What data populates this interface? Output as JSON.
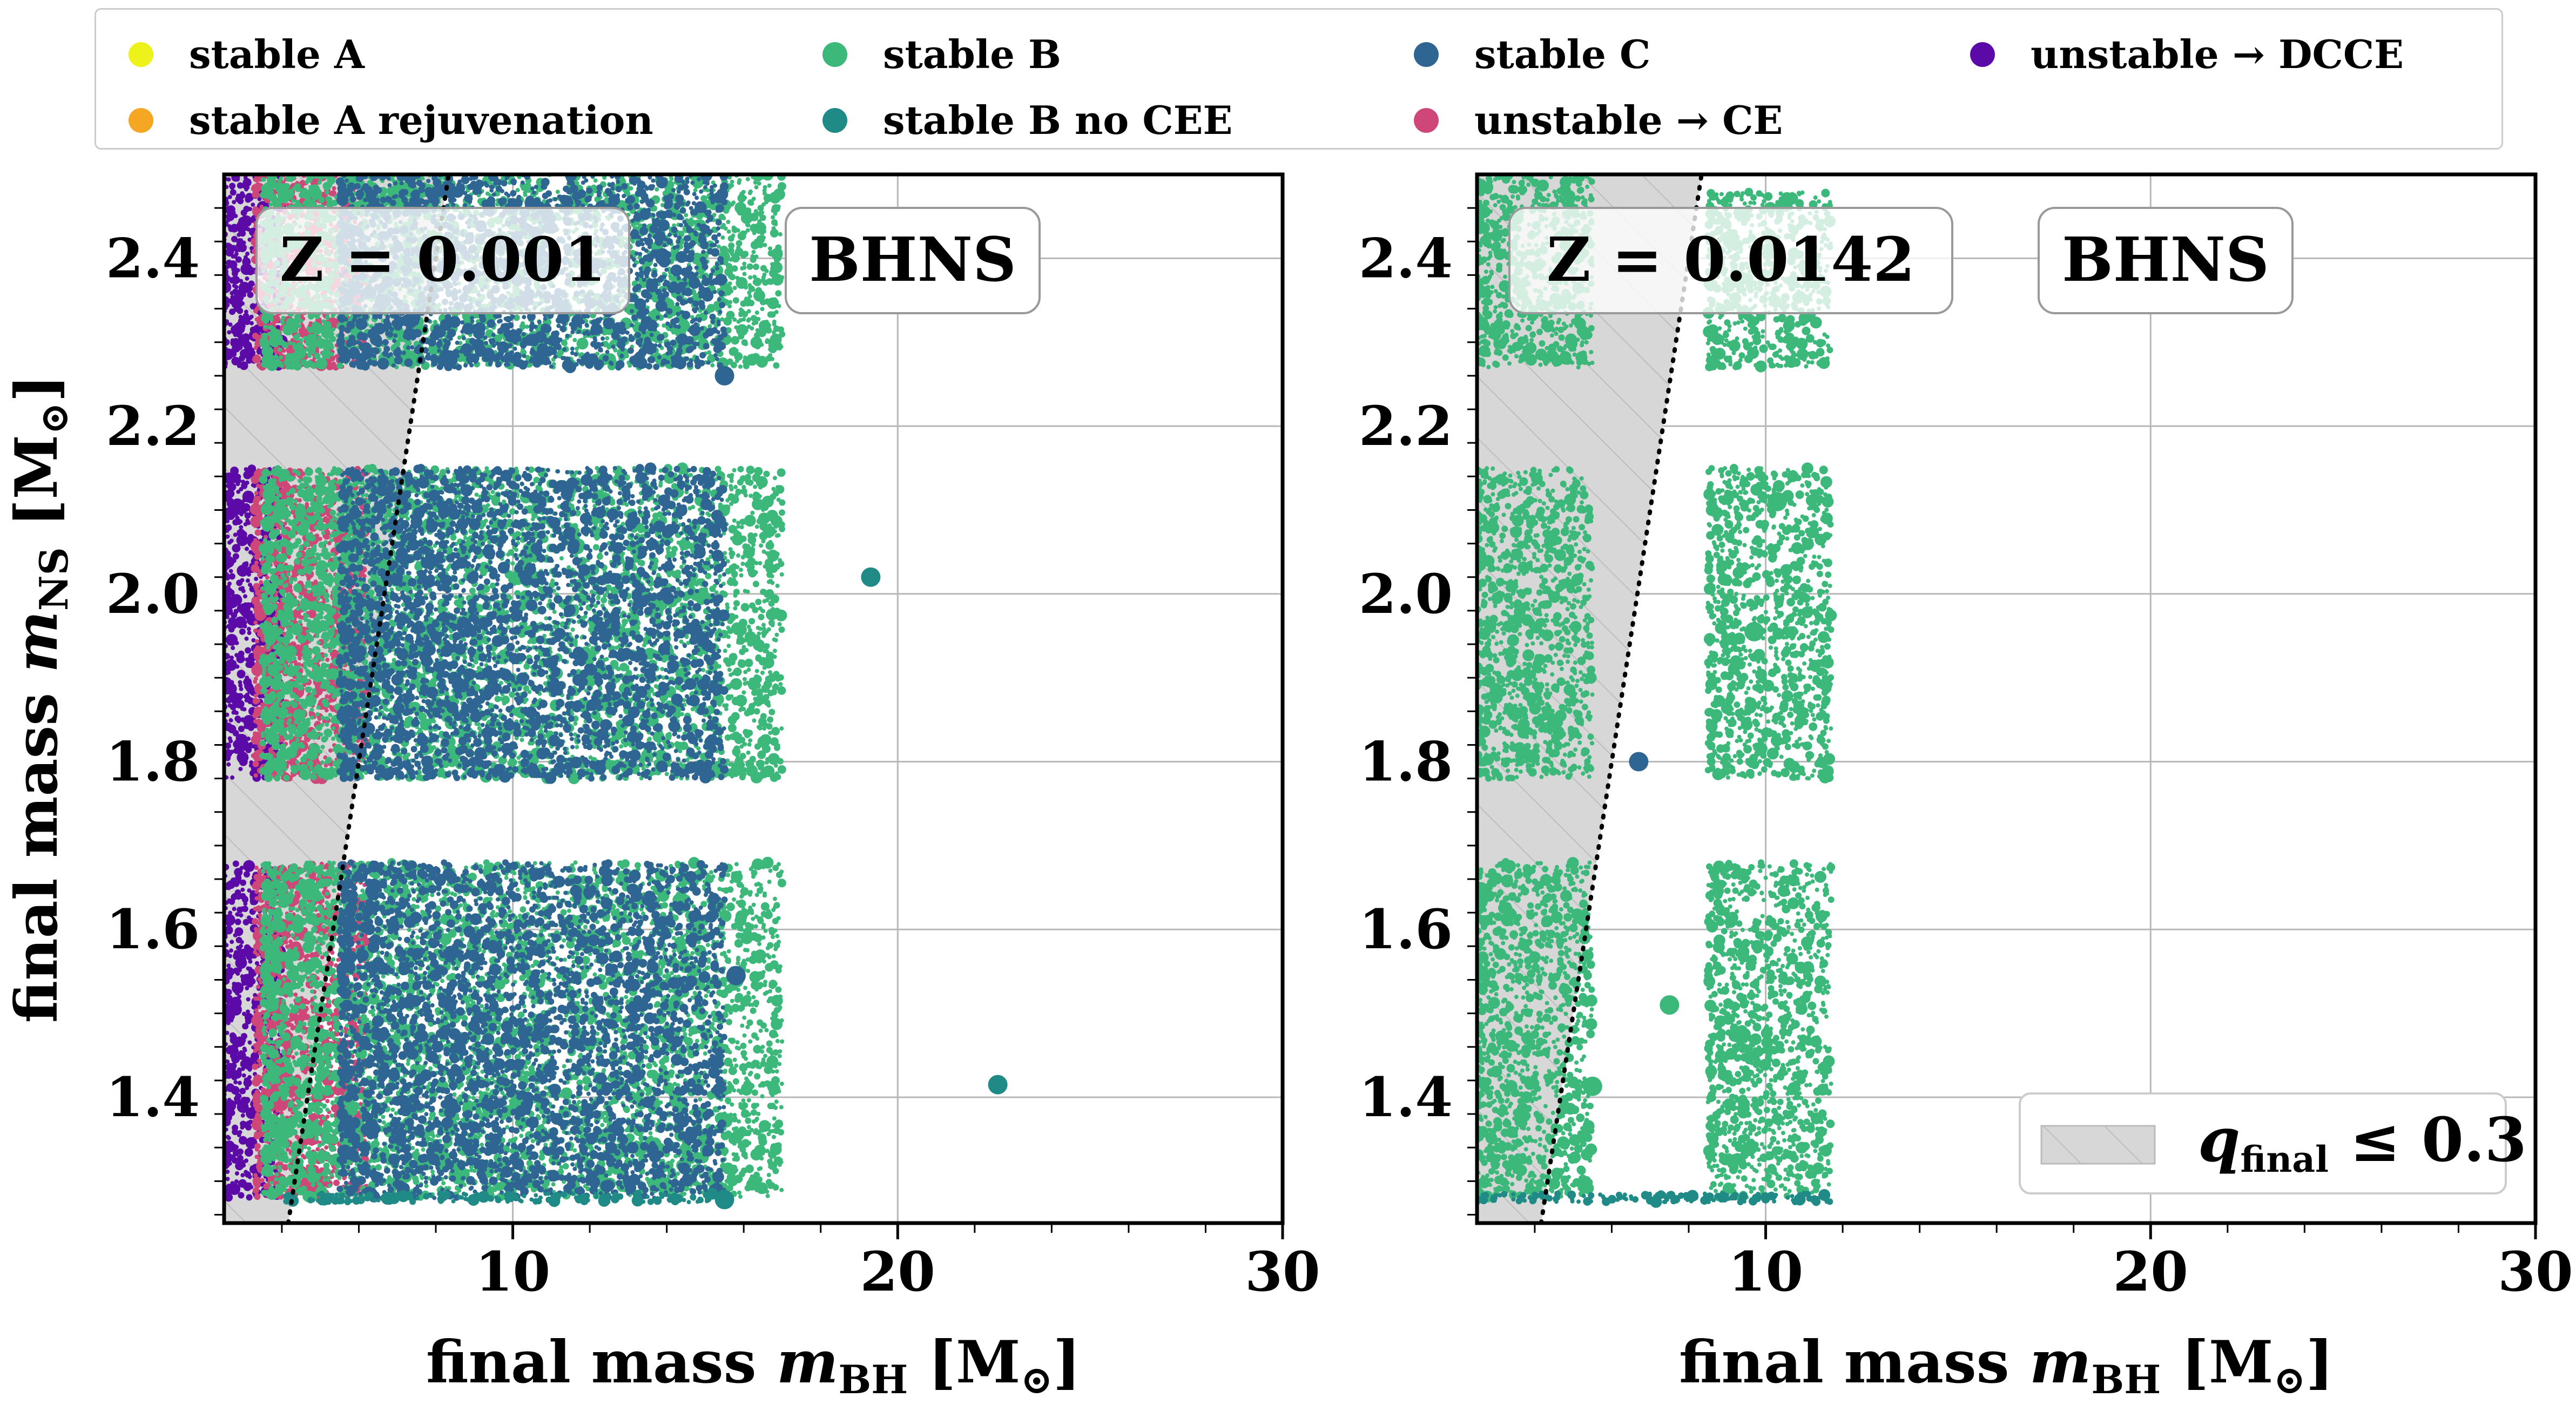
{
  "legend": {
    "items": [
      {
        "label": "stable A",
        "color": "#eef21b"
      },
      {
        "label": "stable A rejuvenation",
        "color": "#f5a623"
      },
      {
        "label": "stable B",
        "color": "#3bb87a"
      },
      {
        "label": "stable B no CEE",
        "color": "#1f8a86"
      },
      {
        "label": "stable C",
        "color": "#2f6592"
      },
      {
        "label": "unstable → CE",
        "color": "#cf4778"
      },
      {
        "label": "unstable → DCCE",
        "color": "#5b0aa8"
      }
    ]
  },
  "panels": [
    {
      "z_label": "Z = 0.001",
      "tag": "BHNS"
    },
    {
      "z_label": "Z = 0.0142",
      "tag": "BHNS"
    }
  ],
  "shade_legend": {
    "label": "q_final ≤ 0.3"
  },
  "chart_data": [
    {
      "type": "scatter",
      "panel": "Z = 0.001",
      "xlabel": "final mass m_BH [M⊙]",
      "ylabel": "final mass m_NS [M⊙]",
      "xlim": [
        2.5,
        30
      ],
      "ylim": [
        1.25,
        2.5
      ],
      "xticks": [
        10,
        20,
        30
      ],
      "yticks": [
        1.4,
        1.6,
        1.8,
        2.0,
        2.2,
        2.4
      ],
      "grid": true,
      "shaded_region": "q_final ≤ 0.3 (m_BH ≤ m_NS / 0.3)",
      "series_regions": [
        {
          "series": "unstable → DCCE",
          "x": [
            2.5,
            4.0
          ],
          "y_bands": [
            [
              1.28,
              1.68
            ],
            [
              1.78,
              2.15
            ],
            [
              2.27,
              2.5
            ]
          ]
        },
        {
          "series": "unstable → CE",
          "x": [
            3.3,
            6.2
          ],
          "y_bands": [
            [
              1.28,
              1.68
            ],
            [
              1.78,
              2.15
            ],
            [
              2.27,
              2.5
            ]
          ]
        },
        {
          "series": "stable B",
          "x": [
            3.5,
            17.0
          ],
          "y_bands": [
            [
              1.28,
              1.68
            ],
            [
              1.78,
              2.15
            ],
            [
              2.27,
              2.5
            ]
          ]
        },
        {
          "series": "stable C",
          "x": [
            5.5,
            15.5
          ],
          "y_bands": [
            [
              1.28,
              1.68
            ],
            [
              1.78,
              2.15
            ],
            [
              2.27,
              2.5
            ]
          ]
        },
        {
          "series": "stable B no CEE",
          "x": [
            4.0,
            15.5
          ],
          "y_bands": [
            [
              1.275,
              1.285
            ]
          ]
        }
      ],
      "notable_points": [
        {
          "series": "stable C",
          "x": 15.5,
          "y": 2.26
        },
        {
          "series": "stable B no CEE",
          "x": 19.3,
          "y": 2.02
        },
        {
          "series": "stable B no CEE",
          "x": 22.6,
          "y": 1.415
        },
        {
          "series": "stable B no CEE",
          "x": 15.5,
          "y": 1.278
        },
        {
          "series": "stable C",
          "x": 15.8,
          "y": 1.545
        }
      ]
    },
    {
      "type": "scatter",
      "panel": "Z = 0.0142",
      "xlabel": "final mass m_BH [M⊙]",
      "ylabel": "",
      "xlim": [
        2.5,
        30
      ],
      "ylim": [
        1.25,
        2.5
      ],
      "xticks": [
        10,
        20,
        30
      ],
      "yticks": [
        1.4,
        1.6,
        1.8,
        2.0,
        2.2,
        2.4
      ],
      "grid": true,
      "shaded_region": "q_final ≤ 0.3 (m_BH ≤ m_NS / 0.3)",
      "legend_placement": "lower-right",
      "series_regions": [
        {
          "series": "stable B",
          "x": [
            2.5,
            5.5
          ],
          "y_bands": [
            [
              1.28,
              1.68
            ],
            [
              1.78,
              2.15
            ],
            [
              2.27,
              2.5
            ]
          ]
        },
        {
          "series": "stable B",
          "x": [
            8.5,
            11.7
          ],
          "y_bands": [
            [
              1.28,
              1.68
            ],
            [
              1.78,
              2.15
            ],
            [
              2.27,
              2.48
            ]
          ]
        },
        {
          "series": "stable B no CEE",
          "x": [
            2.5,
            11.7
          ],
          "y_bands": [
            [
              1.275,
              1.285
            ]
          ]
        }
      ],
      "notable_points": [
        {
          "series": "stable B",
          "x": 10.3,
          "y": 2.11
        },
        {
          "series": "stable B",
          "x": 9.7,
          "y": 1.955
        },
        {
          "series": "stable B",
          "x": 5.5,
          "y": 1.413
        },
        {
          "series": "stable B",
          "x": 7.5,
          "y": 1.51
        },
        {
          "series": "stable C",
          "x": 6.7,
          "y": 1.8
        }
      ]
    }
  ]
}
